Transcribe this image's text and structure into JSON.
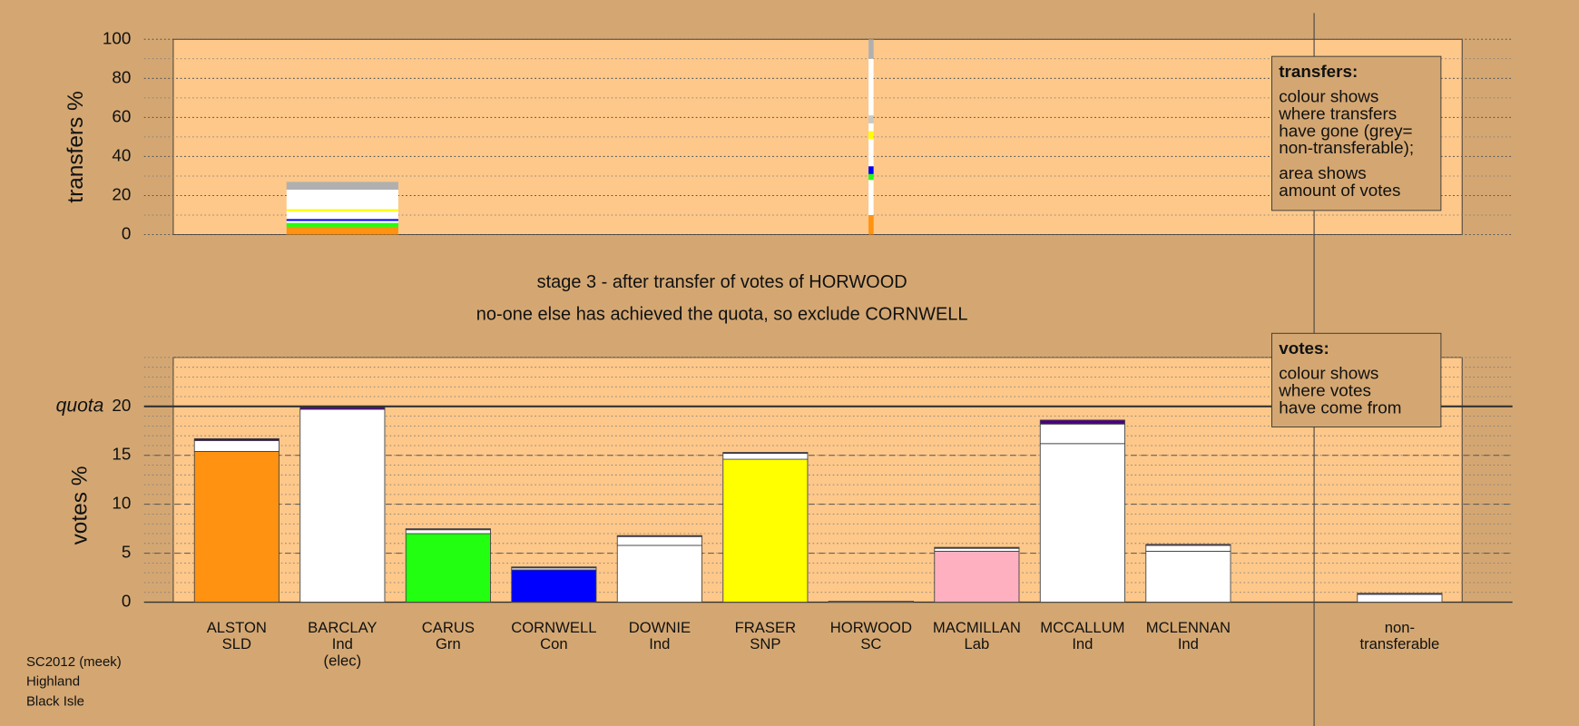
{
  "transfers_chart": {
    "type": "stacked-bar",
    "y_label": "transfers %",
    "ylim": [
      0,
      100
    ],
    "yticks": [
      0,
      20,
      40,
      60,
      80,
      100
    ],
    "minor_step": 10,
    "columns": [
      {
        "segments": [
          {
            "color": "#ff9210",
            "value": 4
          },
          {
            "color": "#22ff10",
            "value": 2
          },
          {
            "color": "#ffffff",
            "value": 1
          },
          {
            "color": "#0000ff",
            "value": 1
          },
          {
            "color": "#ffffff",
            "value": 4
          },
          {
            "color": "#ffff00",
            "value": 1
          },
          {
            "color": "#ffffff",
            "value": 10
          },
          {
            "color": "#b0b0b0",
            "value": 4
          }
        ]
      },
      {
        "segments": [
          {
            "color": "#ff9210",
            "value": 10
          },
          {
            "color": "#ffffff",
            "value": 18
          },
          {
            "color": "#22ff10",
            "value": 3
          },
          {
            "color": "#0000ff",
            "value": 4
          },
          {
            "color": "#ffffff",
            "value": 14
          },
          {
            "color": "#ffff00",
            "value": 4
          },
          {
            "color": "#ffffff",
            "value": 4
          },
          {
            "color": "#c8c8c8",
            "value": 4
          },
          {
            "color": "#ffffff",
            "value": 29
          },
          {
            "color": "#b0b0b0",
            "value": 10
          }
        ]
      }
    ]
  },
  "title": [
    "stage 3 - after transfer of votes of HORWOOD",
    "no-one else has achieved the quota, so exclude CORNWELL"
  ],
  "votes_chart": {
    "type": "stacked-bar",
    "y_label": "votes %",
    "ylim": [
      0,
      25
    ],
    "yticks": [
      0,
      5,
      10,
      15,
      20
    ],
    "minor_step": 1,
    "quota": {
      "label": "quota",
      "value": 20
    },
    "candidates": [
      {
        "label": [
          "ALSTON",
          "SLD"
        ],
        "segments": [
          {
            "color": "#ff9210",
            "value": 15.4
          },
          {
            "color": "#ffffff",
            "value": 1.1
          },
          {
            "color": "#4b0082",
            "value": 0.2
          }
        ]
      },
      {
        "label": [
          "BARCLAY",
          "Ind",
          "(elec)"
        ],
        "segments": [
          {
            "color": "#ffffff",
            "value": 19.7
          },
          {
            "color": "#4b0082",
            "value": 0.2
          }
        ]
      },
      {
        "label": [
          "CARUS",
          "Grn"
        ],
        "segments": [
          {
            "color": "#22ff10",
            "value": 7.0
          },
          {
            "color": "#ffffff",
            "value": 0.4
          },
          {
            "color": "#4b0082",
            "value": 0.1
          }
        ]
      },
      {
        "label": [
          "CORNWELL",
          "Con"
        ],
        "segments": [
          {
            "color": "#0000ff",
            "value": 3.3
          },
          {
            "color": "#ffffff",
            "value": 0.2
          },
          {
            "color": "#4b0082",
            "value": 0.1
          }
        ]
      },
      {
        "label": [
          "DOWNIE",
          "Ind"
        ],
        "segments": [
          {
            "color": "#ffffff",
            "value": 5.8
          },
          {
            "color": "#ffffff",
            "value": 0.9
          },
          {
            "color": "#4b0082",
            "value": 0.1
          }
        ]
      },
      {
        "label": [
          "FRASER",
          "SNP"
        ],
        "segments": [
          {
            "color": "#ffff00",
            "value": 14.6
          },
          {
            "color": "#ffffff",
            "value": 0.6
          },
          {
            "color": "#4b0082",
            "value": 0.1
          }
        ]
      },
      {
        "label": [
          "HORWOOD",
          "SC"
        ],
        "segments": [
          {
            "color": "#ffffff",
            "value": 0.1
          }
        ]
      },
      {
        "label": [
          "MACMILLAN",
          "Lab"
        ],
        "segments": [
          {
            "color": "#ffb0c0",
            "value": 5.2
          },
          {
            "color": "#ffffff",
            "value": 0.3
          },
          {
            "color": "#4b0082",
            "value": 0.1
          }
        ]
      },
      {
        "label": [
          "MCCALLUM",
          "Ind"
        ],
        "segments": [
          {
            "color": "#ffffff",
            "value": 16.2
          },
          {
            "color": "#ffffff",
            "value": 2.0
          },
          {
            "color": "#4b0082",
            "value": 0.4
          }
        ]
      },
      {
        "label": [
          "MCLENNAN",
          "Ind"
        ],
        "segments": [
          {
            "color": "#ffffff",
            "value": 5.2
          },
          {
            "color": "#ffffff",
            "value": 0.6
          },
          {
            "color": "#4b0082",
            "value": 0.1
          }
        ]
      },
      {
        "label": [
          "non-",
          "transferable"
        ],
        "segments": [
          {
            "color": "#ffffff",
            "value": 0.8
          },
          {
            "color": "#4b0082",
            "value": 0.1
          }
        ]
      }
    ]
  },
  "legend_transfers": {
    "heading": "transfers:",
    "paragraphs": [
      [
        "colour shows",
        "where transfers",
        "have gone (grey=",
        "non-transferable);"
      ],
      [
        "area shows",
        "amount of votes"
      ]
    ]
  },
  "legend_votes": {
    "heading": "votes:",
    "paragraphs": [
      [
        "colour shows",
        "where votes",
        "have come from"
      ]
    ]
  },
  "footer": [
    "SC2012 (meek)",
    "Highland",
    "Black Isle"
  ]
}
